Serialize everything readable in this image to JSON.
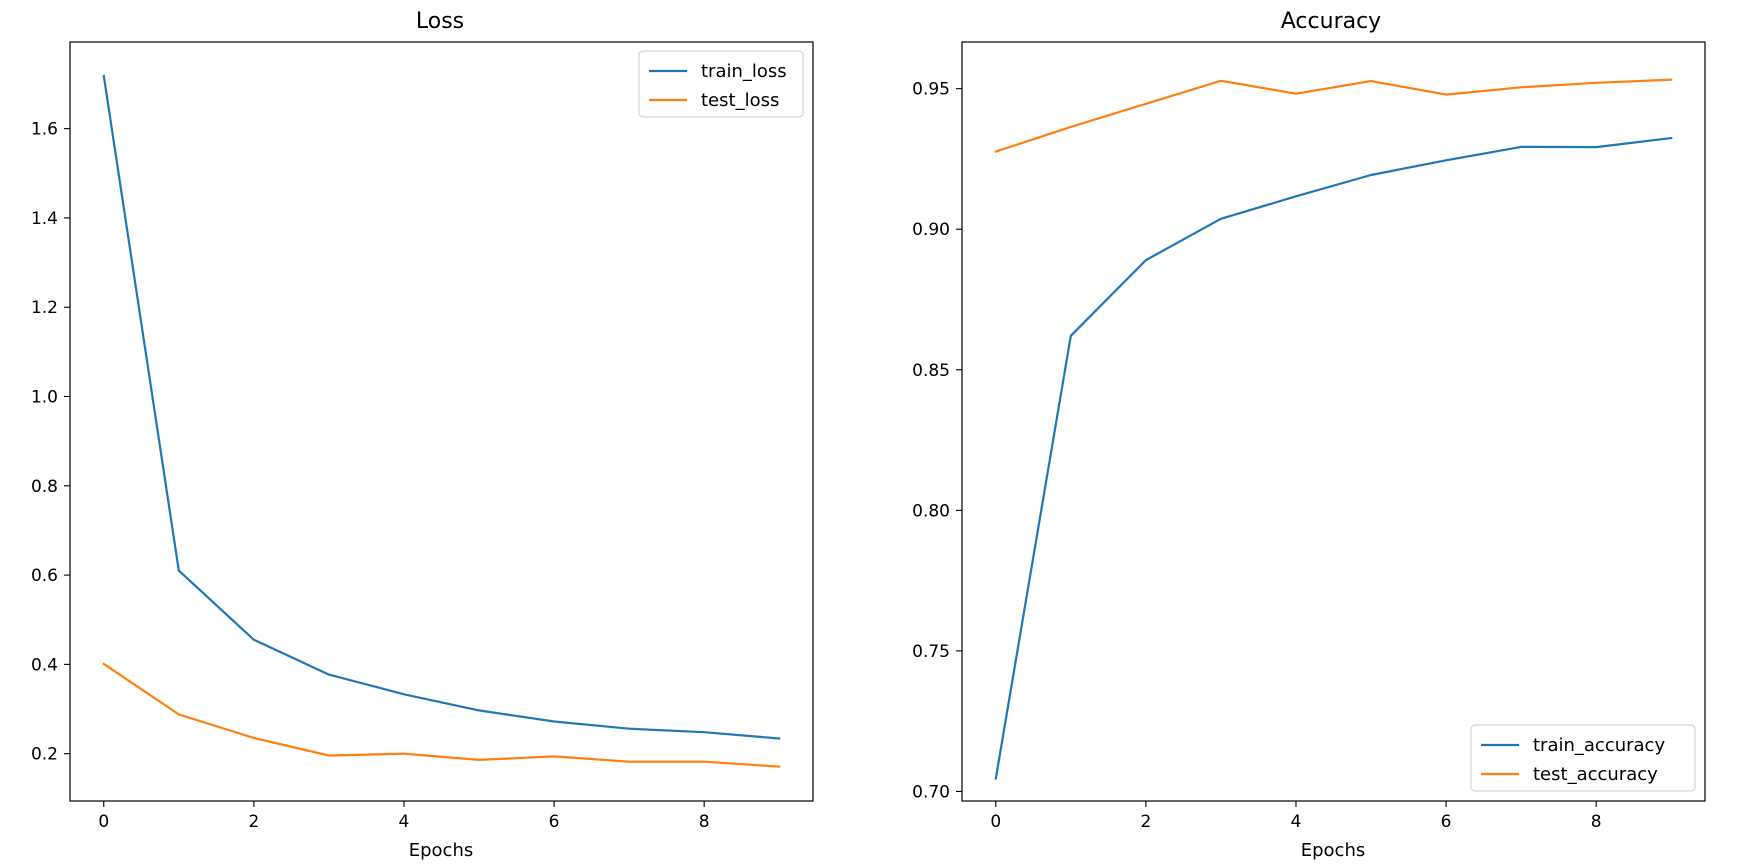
{
  "chart_data": [
    {
      "type": "line",
      "title": "Loss",
      "xlabel": "Epochs",
      "ylabel": "",
      "xlim": [
        -0.45,
        9.45
      ],
      "ylim": [
        0.094,
        1.794
      ],
      "x": [
        0,
        1,
        2,
        3,
        4,
        5,
        6,
        7,
        8,
        9
      ],
      "xticks": [
        0,
        2,
        4,
        6,
        8
      ],
      "xtick_labels": [
        "0",
        "2",
        "4",
        "6",
        "8"
      ],
      "yticks": [
        0.2,
        0.4,
        0.6,
        0.8,
        1.0,
        1.2,
        1.4,
        1.6
      ],
      "ytick_labels": [
        "0.2",
        "0.4",
        "0.6",
        "0.8",
        "1.0",
        "1.2",
        "1.4",
        "1.6"
      ],
      "grid": false,
      "legend_position": "top-right",
      "series": [
        {
          "name": "train_loss",
          "color": "#1f77b4",
          "values": [
            1.718,
            0.61,
            0.455,
            0.377,
            0.333,
            0.297,
            0.272,
            0.256,
            0.248,
            0.234
          ]
        },
        {
          "name": "test_loss",
          "color": "#ff7f0e",
          "values": [
            0.401,
            0.288,
            0.235,
            0.196,
            0.2,
            0.186,
            0.194,
            0.182,
            0.182,
            0.171
          ]
        }
      ]
    },
    {
      "type": "line",
      "title": "Accuracy",
      "xlabel": "Epochs",
      "ylabel": "",
      "xlim": [
        -0.45,
        9.45
      ],
      "ylim": [
        0.6966,
        0.9666
      ],
      "x": [
        0,
        1,
        2,
        3,
        4,
        5,
        6,
        7,
        8,
        9
      ],
      "xticks": [
        0,
        2,
        4,
        6,
        8
      ],
      "xtick_labels": [
        "0",
        "2",
        "4",
        "6",
        "8"
      ],
      "yticks": [
        0.7,
        0.75,
        0.8,
        0.85,
        0.9,
        0.95
      ],
      "ytick_labels": [
        "0.70",
        "0.75",
        "0.80",
        "0.85",
        "0.90",
        "0.95"
      ],
      "grid": false,
      "legend_position": "bottom-right",
      "series": [
        {
          "name": "train_accuracy",
          "color": "#1f77b4",
          "values": [
            0.7046,
            0.8621,
            0.889,
            0.9037,
            0.9117,
            0.9193,
            0.9245,
            0.9293,
            0.9292,
            0.9324
          ]
        },
        {
          "name": "test_accuracy",
          "color": "#ff7f0e",
          "values": [
            0.9276,
            0.9364,
            0.9446,
            0.9528,
            0.9482,
            0.9527,
            0.9479,
            0.9505,
            0.9521,
            0.9532
          ]
        }
      ]
    }
  ]
}
